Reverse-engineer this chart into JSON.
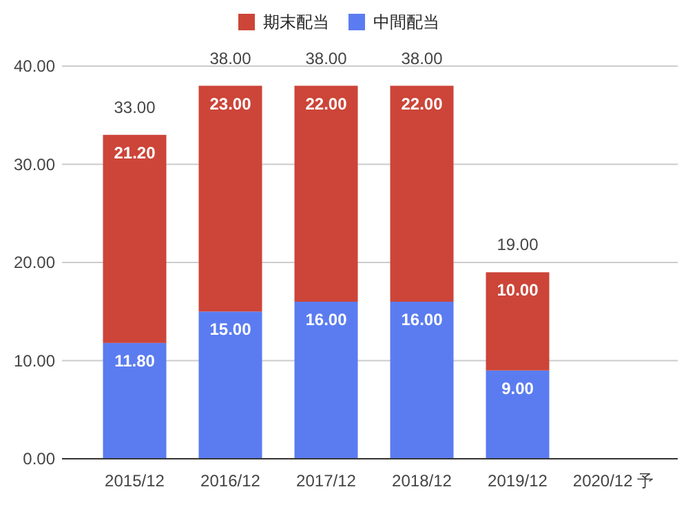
{
  "chart_data": {
    "type": "bar",
    "stacked": true,
    "categories": [
      "2015/12",
      "2016/12",
      "2017/12",
      "2018/12",
      "2019/12",
      "2020/12 予"
    ],
    "series": [
      {
        "name": "中間配当",
        "color": "#5b7cf0",
        "values": [
          11.8,
          15,
          16,
          16,
          9,
          null
        ],
        "value_labels": [
          "11.80",
          "15.00",
          "16.00",
          "16.00",
          "9.00",
          null
        ]
      },
      {
        "name": "期末配当",
        "color": "#cc4538",
        "values": [
          21.2,
          23,
          22,
          22,
          10,
          null
        ],
        "value_labels": [
          "21.20",
          "23.00",
          "22.00",
          "22.00",
          "10.00",
          null
        ]
      }
    ],
    "totals": [
      "33.00",
      "38.00",
      "38.00",
      "38.00",
      "19.00",
      null
    ],
    "ylim": [
      0,
      40
    ],
    "yticks": [
      {
        "value": 0,
        "label": "0.00"
      },
      {
        "value": 10,
        "label": "10.00"
      },
      {
        "value": 20,
        "label": "20.00"
      },
      {
        "value": 30,
        "label": "30.00"
      },
      {
        "value": 40,
        "label": "40.00"
      }
    ],
    "grid": "y",
    "legend": "top"
  }
}
